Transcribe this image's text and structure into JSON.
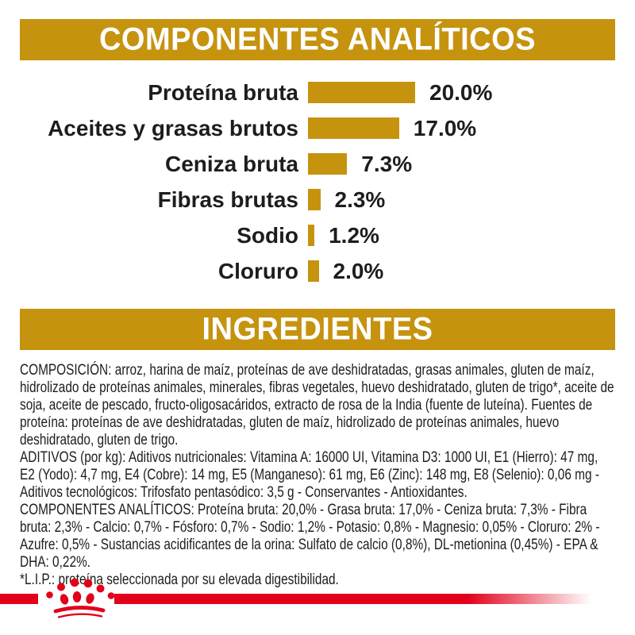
{
  "colors": {
    "gold": "#C6930F",
    "red": "#E2001A",
    "text": "#1D1D1B"
  },
  "sections": {
    "analytical": {
      "title": "COMPONENTES ANALÍTICOS"
    },
    "ingredients": {
      "title": "INGREDIENTES"
    }
  },
  "chart_data": {
    "type": "bar",
    "orientation": "horizontal",
    "categories": [
      "Proteína bruta",
      "Aceites y grasas brutos",
      "Ceniza bruta",
      "Fibras brutas",
      "Sodio",
      "Cloruro"
    ],
    "values": [
      20.0,
      17.0,
      7.3,
      2.3,
      1.2,
      2.0
    ],
    "value_labels": [
      "20.0%",
      "17.0%",
      "7.3%",
      "2.3%",
      "1.2%",
      "2.0%"
    ],
    "unit": "%",
    "axis_max": 20,
    "bar_color": "#C6930F",
    "grid": false,
    "legend": false
  },
  "ingredients_text": {
    "composition": "COMPOSICIÓN: arroz, harina de maíz, proteínas de ave deshidratadas, grasas animales, gluten de maíz, hidrolizado de proteínas animales, minerales, fibras vegetales, huevo deshidratado, gluten de trigo*, aceite de soja, aceite de pescado, fructo-oligosacáridos, extracto de rosa de la India (fuente de luteína). Fuentes de proteína: proteínas de ave deshidratadas, gluten de maíz, hidrolizado de proteínas animales, huevo deshidratado, gluten de trigo.",
    "additives": "ADITIVOS (por kg): Aditivos nutricionales: Vitamina A: 16000 UI, Vitamina D3: 1000 UI, E1 (Hierro): 47 mg, E2 (Yodo): 4,7 mg, E4 (Cobre): 14 mg, E5 (Manganeso): 61 mg, E6 (Zinc): 148 mg, E8 (Selenio): 0,06 mg - Aditivos tecnológicos: Trifosfato pentasódico: 3,5 g - Conservantes - Antioxidantes.",
    "analytical_constituents": "COMPONENTES ANALÍTICOS: Proteína bruta: 20,0% - Grasa bruta: 17,0% - Ceniza bruta: 7,3% - Fibra bruta: 2,3% - Calcio: 0,7% - Fósforo: 0,7% - Sodio: 1,2% - Potasio: 0,8% - Magnesio: 0,05% - Cloruro: 2% - Azufre: 0,5% - Sustancias acidificantes de la orina: Sulfato de calcio (0,8%), DL-metionina (0,45%) - EPA & DHA: 0,22%.",
    "footnote": "*L.I.P.: proteína seleccionada por su elevada digestibilidad."
  },
  "footer": {
    "brand_logo": "royal-canin-crown"
  }
}
